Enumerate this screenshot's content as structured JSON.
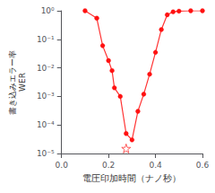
{
  "chart_data": {
    "type": "line",
    "xlabel": "電圧印加時間（ナノ秒）",
    "ylabel": "書き込みエラー率\nWER",
    "log": "y",
    "grid": false,
    "xlim": [
      0.0,
      0.6
    ],
    "xticks": [
      {
        "value": 0.0,
        "label": "0.0"
      },
      0.2,
      0.4,
      0.6
    ],
    "ylim": [
      1e-05,
      1
    ],
    "yticks": [
      {
        "value": 1e-05,
        "label": "10⁻⁵"
      },
      {
        "value": 0.0001,
        "label": "10⁻⁴"
      },
      {
        "value": 0.001,
        "label": "10⁻³"
      },
      {
        "value": 0.01,
        "label": "10⁻²"
      },
      {
        "value": 0.1,
        "label": "10⁻¹"
      },
      {
        "value": 1,
        "label": "10⁰"
      }
    ],
    "series": [
      {
        "type": "line",
        "marker": "circle",
        "line_style": "solid",
        "color": "#ff3333",
        "colors": [
          "#ff1111",
          "#ff1111",
          "#ff1111",
          "#ff1111",
          "#ff1111",
          "#ff1111",
          "#ff1111",
          "#ff1111",
          "#ff1111",
          "#ff1111",
          "#ff1111",
          "#ff1111",
          "#ff1111",
          "#ff1111",
          "#ff1111",
          "#ff1111",
          "#ff1111",
          "#ff1111",
          "#ff1111"
        ],
        "x": [
          0.1,
          0.15,
          0.175,
          0.2,
          0.215,
          0.225,
          0.25,
          0.275,
          0.3,
          0.325,
          0.35,
          0.375,
          0.4,
          0.425,
          0.45,
          0.475,
          0.5,
          0.55,
          0.6
        ],
        "values": [
          1.0,
          0.55,
          0.06,
          0.018,
          0.008,
          0.002,
          0.001,
          5e-05,
          3e-05,
          0.0003,
          0.0012,
          0.006,
          0.035,
          0.22,
          0.72,
          0.92,
          0.97,
          1.0,
          1.0
        ]
      },
      {
        "type": "scatter",
        "marker": "star",
        "color": "#ff3333",
        "x": [
          0.275
        ],
        "values": [
          1.5e-05
        ]
      }
    ]
  }
}
